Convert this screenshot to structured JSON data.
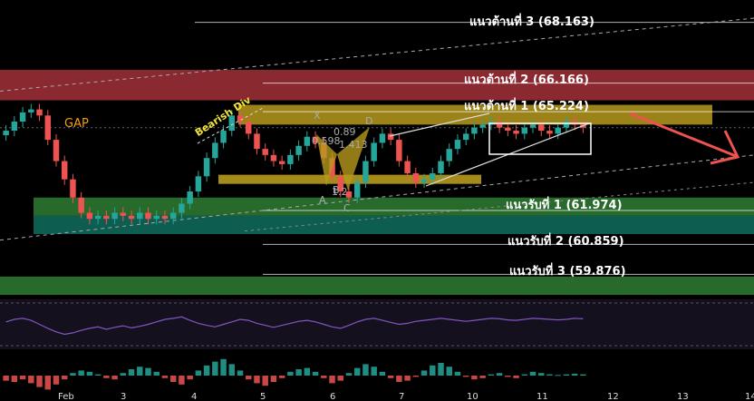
{
  "chart_data": {
    "type": "candlestick",
    "levels": {
      "resistance": [
        {
          "label": "แนวต้านที่ 3 (68.163)",
          "value": 68.163
        },
        {
          "label": "แนวต้านที่ 2 (66.166)",
          "value": 66.166
        },
        {
          "label": "แนวต้านที่ 1 (65.224)",
          "value": 65.224
        }
      ],
      "support": [
        {
          "label": "แนวรับที่ 1 (61.974)",
          "value": 61.974
        },
        {
          "label": "แนวรับที่ 2 (60.859)",
          "value": 60.859
        },
        {
          "label": "แนวรับที่ 3 (59.876)",
          "value": 59.876
        }
      ]
    },
    "annotations": {
      "gap": "GAP",
      "divergence": "Bearish Div",
      "pattern_points": [
        "X",
        "A",
        "B",
        "C",
        "D"
      ],
      "pattern_ratios": [
        "0.89",
        "0.598",
        "1.413",
        "1.2"
      ]
    },
    "x_ticks": [
      "Feb",
      "3",
      "4",
      "5",
      "6",
      "7",
      "10",
      "11",
      "12",
      "13",
      "14"
    ],
    "colors": {
      "up": "#26a69a",
      "down": "#ef5350",
      "resistance_zone": "#a3303a",
      "resistance_zone_light": "#b69a1d",
      "support_zone": "#2e7d32",
      "support_zone_teal": "#0f6e5e",
      "rsi_line": "#7e57c2",
      "arrow": "#ef5350"
    },
    "price_series": [
      64.6,
      64.9,
      65.2,
      65.3,
      65.1,
      64.3,
      63.6,
      63.0,
      62.4,
      61.9,
      61.7,
      61.8,
      61.7,
      61.9,
      61.8,
      61.7,
      61.9,
      61.7,
      61.8,
      61.7,
      61.9,
      62.2,
      62.6,
      63.1,
      63.7,
      64.2,
      64.6,
      65.1,
      64.9,
      64.5,
      64.0,
      63.8,
      63.6,
      63.5,
      63.8,
      64.1,
      64.4,
      64.2,
      63.7,
      63.1,
      62.6,
      62.4,
      62.9,
      63.6,
      64.2,
      64.5,
      64.3,
      63.6,
      63.2,
      62.9,
      63.0,
      63.2,
      63.6,
      64.0,
      64.3,
      64.5,
      64.7,
      64.8,
      64.9,
      64.7,
      64.6,
      64.5,
      64.7,
      64.8,
      64.6,
      64.5,
      64.7,
      64.9,
      64.8,
      64.7
    ],
    "rsi": [
      55,
      60,
      62,
      58,
      50,
      42,
      35,
      30,
      33,
      38,
      42,
      45,
      40,
      44,
      47,
      43,
      46,
      50,
      55,
      60,
      62,
      65,
      58,
      52,
      48,
      45,
      50,
      55,
      60,
      58,
      52,
      48,
      44,
      48,
      52,
      56,
      58,
      55,
      50,
      45,
      42,
      48,
      55,
      60,
      62,
      58,
      54,
      50,
      52,
      56,
      58,
      60,
      62,
      60,
      58,
      56,
      58,
      60,
      62,
      61,
      59,
      58,
      60,
      62,
      61,
      60,
      59,
      60,
      62,
      61
    ],
    "macd_hist": [
      -0.4,
      -0.5,
      -0.3,
      -0.6,
      -0.9,
      -1.1,
      -0.7,
      -0.3,
      0.2,
      0.4,
      0.3,
      0.1,
      -0.2,
      -0.3,
      0.2,
      0.5,
      0.7,
      0.6,
      0.3,
      -0.2,
      -0.5,
      -0.7,
      -0.3,
      0.4,
      0.8,
      1.1,
      1.3,
      0.9,
      0.4,
      -0.3,
      -0.6,
      -0.8,
      -0.5,
      -0.2,
      0.3,
      0.5,
      0.6,
      0.3,
      -0.2,
      -0.6,
      -0.4,
      0.2,
      0.6,
      0.9,
      0.7,
      0.3,
      -0.2,
      -0.5,
      -0.4,
      -0.1,
      0.4,
      0.8,
      1.0,
      0.7,
      0.3,
      -0.1,
      -0.3,
      -0.2,
      0.1,
      0.2,
      -0.1,
      -0.2,
      0.1,
      0.3,
      0.2,
      0.1,
      0.05,
      0.1,
      0.15,
      0.1
    ]
  }
}
